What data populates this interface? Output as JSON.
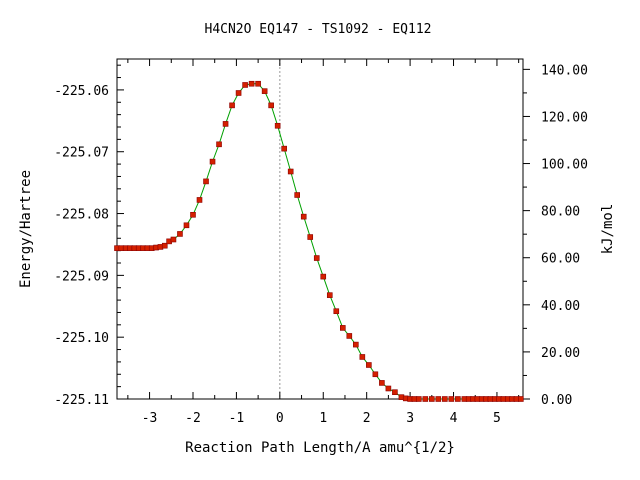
{
  "chart_data": {
    "type": "scatter",
    "title": "H4CN2O   EQ147 - TS1092 - EQ112",
    "xlabel": "Reaction Path Length/A amu^{1/2}",
    "ylabel": "Energy/Hartree",
    "y2label": "kJ/mol",
    "xlim": [
      -3.75,
      5.6
    ],
    "ylim": [
      -225.11,
      -225.055
    ],
    "y2lim": [
      0,
      144.4
    ],
    "x_ticks": [
      "-3",
      "-2",
      "-1",
      "0",
      "1",
      "2",
      "3",
      "4",
      "5"
    ],
    "y_ticks": [
      "-225.06",
      "-225.07",
      "-225.08",
      "-225.09",
      "-225.10",
      "-225.11"
    ],
    "y2_ticks": [
      "140.00",
      "120.00",
      "100.00",
      "80.00",
      "60.00",
      "40.00",
      "20.00",
      "0.00"
    ],
    "grid": false,
    "ts_reference_line_x": 0,
    "colors": {
      "line": "#00a000",
      "marker": "#d42000",
      "marker_edge": "#8b0000",
      "axis": "#000000",
      "ref_line": "#999999"
    },
    "series": [
      {
        "x": [
          -3.75,
          -3.65,
          -3.55,
          -3.45,
          -3.35,
          -3.25,
          -3.15,
          -3.05,
          -2.95,
          -2.85,
          -2.75,
          -2.65,
          -2.55,
          -2.45,
          -2.3,
          -2.15,
          -2.0,
          -1.85,
          -1.7,
          -1.55,
          -1.4,
          -1.25,
          -1.1,
          -0.95,
          -0.8,
          -0.65,
          -0.5,
          -0.35,
          -0.2,
          -0.05,
          0.1,
          0.25,
          0.4,
          0.55,
          0.7,
          0.85,
          1.0,
          1.15,
          1.3,
          1.45,
          1.6,
          1.75,
          1.9,
          2.05,
          2.2,
          2.35,
          2.5,
          2.65,
          2.8,
          2.9,
          3.0,
          3.1,
          3.2,
          3.35,
          3.5,
          3.65,
          3.8,
          3.95,
          4.1,
          4.25,
          4.35,
          4.45,
          4.55,
          4.65,
          4.75,
          4.85,
          4.95,
          5.05,
          5.15,
          5.25,
          5.35,
          5.45,
          5.55
        ],
        "y": [
          -225.0856,
          -225.0856,
          -225.0856,
          -225.0856,
          -225.0856,
          -225.0856,
          -225.0856,
          -225.0856,
          -225.0856,
          -225.0855,
          -225.0854,
          -225.0852,
          -225.0845,
          -225.0842,
          -225.0833,
          -225.0819,
          -225.0802,
          -225.0778,
          -225.0748,
          -225.0716,
          -225.0688,
          -225.0655,
          -225.0625,
          -225.0605,
          -225.0592,
          -225.059,
          -225.059,
          -225.0602,
          -225.0625,
          -225.0658,
          -225.0695,
          -225.0732,
          -225.077,
          -225.0805,
          -225.0838,
          -225.0872,
          -225.0902,
          -225.0932,
          -225.0958,
          -225.0985,
          -225.0998,
          -225.1012,
          -225.1032,
          -225.1045,
          -225.106,
          -225.1074,
          -225.1083,
          -225.1089,
          -225.1097,
          -225.1099,
          -225.11,
          -225.11,
          -225.11,
          -225.11,
          -225.11,
          -225.11,
          -225.11,
          -225.11,
          -225.11,
          -225.11,
          -225.11,
          -225.11,
          -225.11,
          -225.11,
          -225.11,
          -225.11,
          -225.11,
          -225.11,
          -225.11,
          -225.11,
          -225.11,
          -225.11,
          -225.11
        ]
      }
    ]
  }
}
